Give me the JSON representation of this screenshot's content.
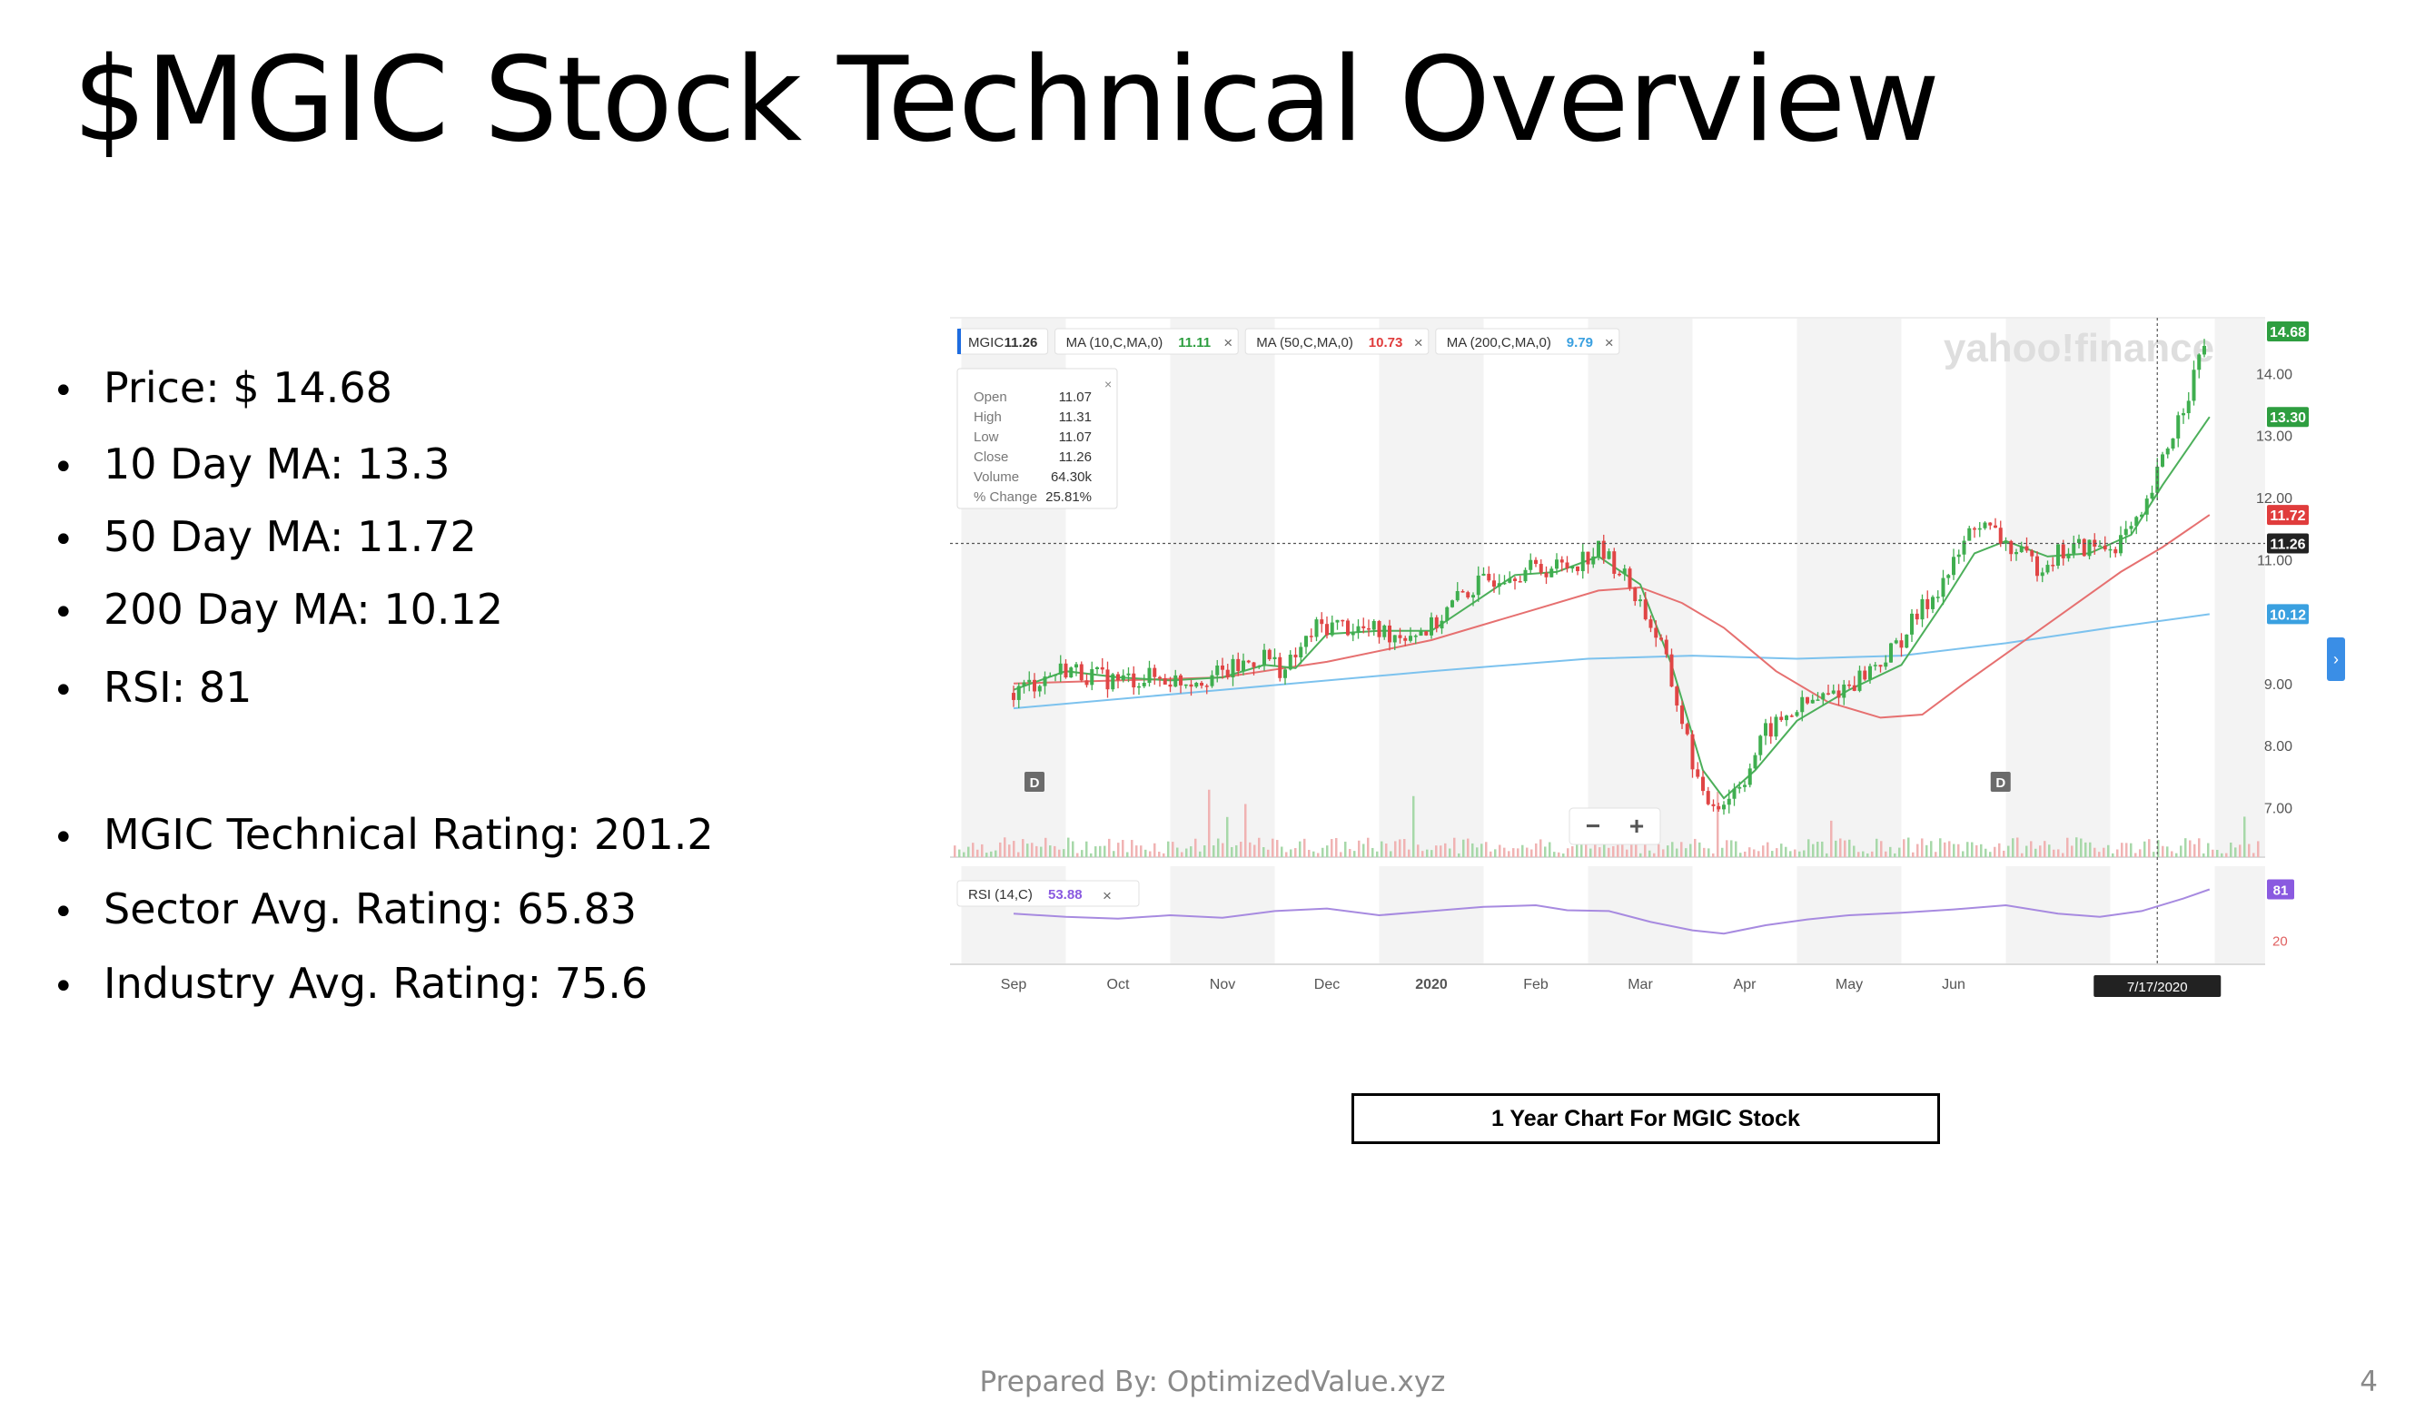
{
  "slide": {
    "title": "$MGIC Stock Technical Overview",
    "bullets": [
      "Price: $ 14.68",
      "10 Day MA: 13.3",
      "50 Day MA: 11.72",
      "200 Day MA: 10.12",
      "RSI: 81",
      "MGIC Technical Rating: 201.2",
      "Sector Avg. Rating: 65.83",
      "Industry Avg. Rating: 75.6"
    ],
    "caption": "1 Year Chart For MGIC Stock",
    "footer": "Prepared By: OptimizedValue.xyz",
    "page_number": "4"
  },
  "chart_data": {
    "type": "candlestick",
    "watermark": "yahoo!finance",
    "legend": [
      {
        "label": "MGIC",
        "value": "11.26",
        "color": "#333333"
      },
      {
        "label": "MA (10,C,MA,0)",
        "value": "11.11",
        "color": "#2e9e40"
      },
      {
        "label": "MA (50,C,MA,0)",
        "value": "10.73",
        "color": "#e03c3c"
      },
      {
        "label": "MA (200,C,MA,0)",
        "value": "9.79",
        "color": "#3aa0e0"
      }
    ],
    "tooltip": [
      {
        "label": "Open",
        "value": "11.07"
      },
      {
        "label": "High",
        "value": "11.31"
      },
      {
        "label": "Low",
        "value": "11.07"
      },
      {
        "label": "Close",
        "value": "11.26"
      },
      {
        "label": "Volume",
        "value": "64.30k"
      },
      {
        "label": "% Change",
        "value": "25.81%"
      }
    ],
    "x_ticks": [
      "Sep",
      "Oct",
      "Nov",
      "Dec",
      "2020",
      "Feb",
      "Mar",
      "Apr",
      "May",
      "Jun"
    ],
    "crosshair_date": "7/17/2020",
    "y_ticks": [
      "14.00",
      "13.00",
      "12.00",
      "11.00",
      "9.00",
      "8.00",
      "7.00"
    ],
    "ylim": [
      6.2,
      14.9
    ],
    "price_badges": [
      {
        "value": "14.68",
        "color": "#2e9e40"
      },
      {
        "value": "13.30",
        "color": "#2e9e40"
      },
      {
        "value": "11.72",
        "color": "#e03c3c"
      },
      {
        "value": "11.26",
        "color": "#222222"
      },
      {
        "value": "10.12",
        "color": "#3aa0e0"
      }
    ],
    "dividend_markers": [
      "D",
      "D"
    ],
    "zoom_controls": [
      "−",
      "+"
    ],
    "close_series": [
      {
        "m": 0,
        "v": 8.85
      },
      {
        "m": 0.3,
        "v": 9.1
      },
      {
        "m": 0.5,
        "v": 9.25
      },
      {
        "m": 0.8,
        "v": 9.1
      },
      {
        "m": 1.0,
        "v": 9.05
      },
      {
        "m": 1.3,
        "v": 9.1
      },
      {
        "m": 1.6,
        "v": 9.05
      },
      {
        "m": 2.0,
        "v": 9.15
      },
      {
        "m": 2.4,
        "v": 9.45
      },
      {
        "m": 2.6,
        "v": 9.2
      },
      {
        "m": 2.9,
        "v": 9.9
      },
      {
        "m": 3.1,
        "v": 9.95
      },
      {
        "m": 3.4,
        "v": 9.85
      },
      {
        "m": 3.7,
        "v": 9.8
      },
      {
        "m": 4.0,
        "v": 9.9
      },
      {
        "m": 4.3,
        "v": 10.45
      },
      {
        "m": 4.7,
        "v": 10.8
      },
      {
        "m": 5.0,
        "v": 10.85
      },
      {
        "m": 5.3,
        "v": 10.9
      },
      {
        "m": 5.6,
        "v": 11.15
      },
      {
        "m": 5.8,
        "v": 10.85
      },
      {
        "m": 6.0,
        "v": 10.3
      },
      {
        "m": 6.2,
        "v": 9.6
      },
      {
        "m": 6.4,
        "v": 8.4
      },
      {
        "m": 6.6,
        "v": 7.1
      },
      {
        "m": 6.8,
        "v": 7.1
      },
      {
        "m": 7.0,
        "v": 7.5
      },
      {
        "m": 7.2,
        "v": 8.2
      },
      {
        "m": 7.5,
        "v": 8.6
      },
      {
        "m": 7.8,
        "v": 8.8
      },
      {
        "m": 8.1,
        "v": 9.1
      },
      {
        "m": 8.4,
        "v": 9.5
      },
      {
        "m": 8.7,
        "v": 10.2
      },
      {
        "m": 9.0,
        "v": 10.9
      },
      {
        "m": 9.2,
        "v": 11.6
      },
      {
        "m": 9.4,
        "v": 11.4
      },
      {
        "m": 9.6,
        "v": 11.1
      },
      {
        "m": 9.8,
        "v": 10.9
      },
      {
        "m": 10.0,
        "v": 11.1
      },
      {
        "m": 10.2,
        "v": 11.2
      },
      {
        "m": 10.5,
        "v": 11.2
      },
      {
        "m": 10.8,
        "v": 11.6
      },
      {
        "m": 11.0,
        "v": 12.6
      },
      {
        "m": 11.2,
        "v": 13.5
      },
      {
        "m": 11.45,
        "v": 14.68
      }
    ],
    "ma10_series": [
      {
        "m": 0,
        "v": 8.9
      },
      {
        "m": 0.5,
        "v": 9.2
      },
      {
        "m": 1.0,
        "v": 9.1
      },
      {
        "m": 1.5,
        "v": 9.05
      },
      {
        "m": 2.0,
        "v": 9.1
      },
      {
        "m": 2.4,
        "v": 9.3
      },
      {
        "m": 2.7,
        "v": 9.25
      },
      {
        "m": 3.0,
        "v": 9.8
      },
      {
        "m": 3.5,
        "v": 9.85
      },
      {
        "m": 4.0,
        "v": 9.85
      },
      {
        "m": 4.4,
        "v": 10.3
      },
      {
        "m": 4.8,
        "v": 10.75
      },
      {
        "m": 5.2,
        "v": 10.8
      },
      {
        "m": 5.6,
        "v": 11.05
      },
      {
        "m": 6.0,
        "v": 10.6
      },
      {
        "m": 6.3,
        "v": 9.3
      },
      {
        "m": 6.6,
        "v": 7.6
      },
      {
        "m": 6.8,
        "v": 7.15
      },
      {
        "m": 7.1,
        "v": 7.6
      },
      {
        "m": 7.5,
        "v": 8.4
      },
      {
        "m": 8.0,
        "v": 8.9
      },
      {
        "m": 8.5,
        "v": 9.3
      },
      {
        "m": 8.9,
        "v": 10.3
      },
      {
        "m": 9.2,
        "v": 11.1
      },
      {
        "m": 9.5,
        "v": 11.3
      },
      {
        "m": 9.9,
        "v": 11.05
      },
      {
        "m": 10.3,
        "v": 11.1
      },
      {
        "m": 10.7,
        "v": 11.4
      },
      {
        "m": 11.0,
        "v": 12.2
      },
      {
        "m": 11.45,
        "v": 13.3
      }
    ],
    "ma50_series": [
      {
        "m": 0,
        "v": 9.0
      },
      {
        "m": 1.0,
        "v": 9.05
      },
      {
        "m": 2.0,
        "v": 9.1
      },
      {
        "m": 3.0,
        "v": 9.35
      },
      {
        "m": 4.0,
        "v": 9.7
      },
      {
        "m": 5.0,
        "v": 10.2
      },
      {
        "m": 5.6,
        "v": 10.5
      },
      {
        "m": 6.0,
        "v": 10.55
      },
      {
        "m": 6.4,
        "v": 10.3
      },
      {
        "m": 6.8,
        "v": 9.9
      },
      {
        "m": 7.3,
        "v": 9.2
      },
      {
        "m": 7.8,
        "v": 8.7
      },
      {
        "m": 8.3,
        "v": 8.45
      },
      {
        "m": 8.7,
        "v": 8.5
      },
      {
        "m": 9.1,
        "v": 9.0
      },
      {
        "m": 9.6,
        "v": 9.6
      },
      {
        "m": 10.1,
        "v": 10.2
      },
      {
        "m": 10.6,
        "v": 10.8
      },
      {
        "m": 11.0,
        "v": 11.2
      },
      {
        "m": 11.45,
        "v": 11.72
      }
    ],
    "ma200_series": [
      {
        "m": 0,
        "v": 8.6
      },
      {
        "m": 2.0,
        "v": 8.9
      },
      {
        "m": 4.0,
        "v": 9.2
      },
      {
        "m": 5.5,
        "v": 9.4
      },
      {
        "m": 6.5,
        "v": 9.45
      },
      {
        "m": 7.5,
        "v": 9.4
      },
      {
        "m": 8.5,
        "v": 9.45
      },
      {
        "m": 9.5,
        "v": 9.65
      },
      {
        "m": 10.5,
        "v": 9.9
      },
      {
        "m": 11.45,
        "v": 10.12
      }
    ],
    "rsi": {
      "label": "RSI (14,C)",
      "value_label": "53.88",
      "current": "81",
      "lower_level": "20",
      "series": [
        {
          "m": 0,
          "v": 52
        },
        {
          "m": 0.5,
          "v": 48
        },
        {
          "m": 1.0,
          "v": 46
        },
        {
          "m": 1.5,
          "v": 50
        },
        {
          "m": 2.0,
          "v": 47
        },
        {
          "m": 2.5,
          "v": 55
        },
        {
          "m": 3.0,
          "v": 58
        },
        {
          "m": 3.5,
          "v": 50
        },
        {
          "m": 4.0,
          "v": 55
        },
        {
          "m": 4.5,
          "v": 60
        },
        {
          "m": 5.0,
          "v": 62
        },
        {
          "m": 5.3,
          "v": 56
        },
        {
          "m": 5.7,
          "v": 55
        },
        {
          "m": 6.1,
          "v": 42
        },
        {
          "m": 6.5,
          "v": 32
        },
        {
          "m": 6.8,
          "v": 28
        },
        {
          "m": 7.2,
          "v": 38
        },
        {
          "m": 7.6,
          "v": 45
        },
        {
          "m": 8.0,
          "v": 50
        },
        {
          "m": 8.5,
          "v": 53
        },
        {
          "m": 9.0,
          "v": 57
        },
        {
          "m": 9.5,
          "v": 62
        },
        {
          "m": 10.0,
          "v": 52
        },
        {
          "m": 10.4,
          "v": 48
        },
        {
          "m": 10.8,
          "v": 55
        },
        {
          "m": 11.2,
          "v": 70
        },
        {
          "m": 11.45,
          "v": 81
        }
      ]
    }
  }
}
